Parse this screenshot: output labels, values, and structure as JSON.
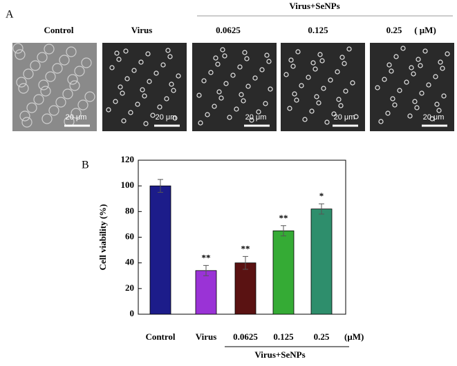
{
  "panel_a": {
    "label": "A",
    "group_label": "Virus+SeNPs",
    "unit": "( μM)",
    "images": [
      {
        "label": "Control",
        "scale": "20 μm"
      },
      {
        "label": "Virus",
        "scale": "20 μm"
      },
      {
        "label": "0.0625",
        "scale": "20 μm"
      },
      {
        "label": "0.125",
        "scale": "20 μm"
      },
      {
        "label": "0.25",
        "scale": "20 μm"
      }
    ]
  },
  "chart_data": {
    "type": "bar",
    "panel_label": "B",
    "ylabel": "Cell viability (%)",
    "categories": [
      "Control",
      "Virus",
      "0.0625",
      "0.125",
      "0.25"
    ],
    "unit": "(μM)",
    "group_label": "Virus+SeNPs",
    "values": [
      100,
      34,
      40,
      65,
      82
    ],
    "errors": [
      5,
      4,
      5,
      4,
      4
    ],
    "annotations": [
      null,
      "**",
      "**",
      "**",
      "*"
    ],
    "colors": [
      "#1c1c8a",
      "#9a33d6",
      "#5a1212",
      "#35ab35",
      "#2e8e6c"
    ],
    "ylim": [
      0,
      120
    ],
    "yticks": [
      0,
      20,
      40,
      60,
      80,
      100,
      120
    ]
  }
}
